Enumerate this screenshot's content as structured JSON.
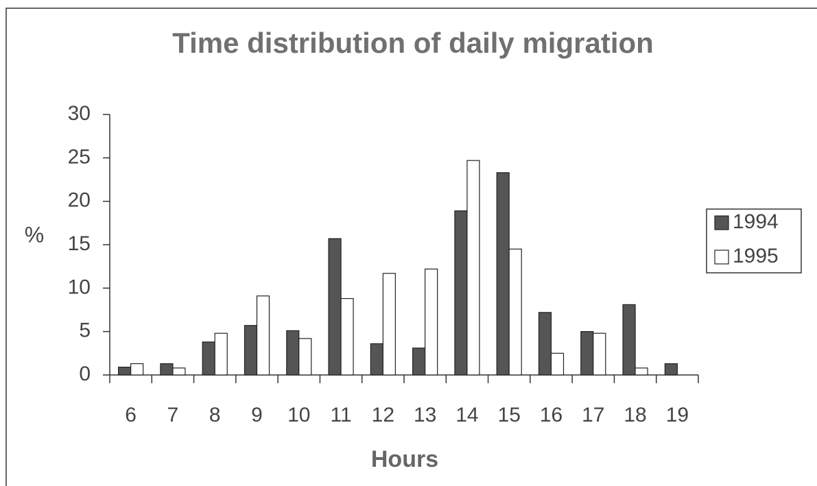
{
  "chart_data": {
    "type": "bar",
    "title": "Time distribution of daily migration",
    "x_label": "Hours",
    "y_label": "%",
    "categories": [
      "6",
      "7",
      "8",
      "9",
      "10",
      "11",
      "12",
      "13",
      "14",
      "15",
      "16",
      "17",
      "18",
      "19"
    ],
    "series": [
      {
        "name": "1994",
        "color": "#555555",
        "values": [
          0.9,
          1.3,
          3.8,
          5.7,
          5.1,
          15.7,
          3.6,
          3.1,
          18.9,
          23.3,
          7.2,
          5.0,
          8.1,
          1.3
        ]
      },
      {
        "name": "1995",
        "color": "#ffffff",
        "values": [
          1.3,
          0.8,
          4.8,
          9.1,
          4.2,
          8.8,
          11.7,
          12.2,
          24.7,
          14.5,
          2.5,
          4.8,
          0.8,
          null
        ]
      }
    ],
    "ylim": [
      0,
      30
    ],
    "yticks": [
      0,
      5,
      10,
      15,
      20,
      25,
      30
    ],
    "grid": false,
    "legend": "right"
  }
}
